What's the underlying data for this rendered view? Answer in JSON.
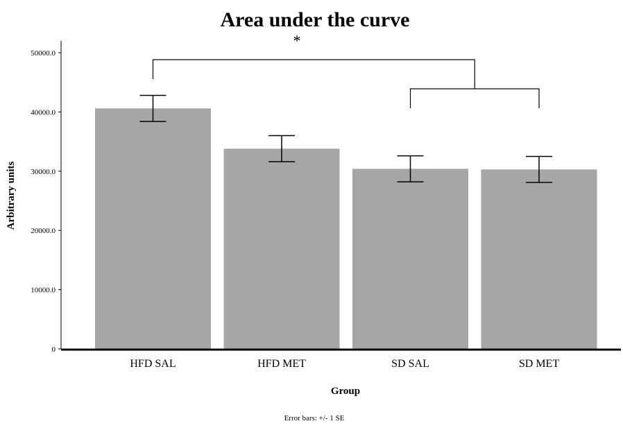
{
  "chart_data": {
    "type": "bar",
    "title": "Area under the curve",
    "xlabel": "Group",
    "ylabel": "Arbitrary units",
    "categories": [
      "HFD SAL",
      "HFD MET",
      "SD SAL",
      "SD MET"
    ],
    "values": [
      40600,
      33800,
      30400,
      30300
    ],
    "error_bars": [
      2200,
      2200,
      2200,
      2200
    ],
    "ylim": [
      0,
      52000
    ],
    "yticks": [
      0,
      10000,
      20000,
      30000,
      40000,
      50000
    ],
    "ytick_labels": [
      "0",
      "10000.0",
      "20000.0",
      "30000.0",
      "40000.0",
      "50000.0"
    ],
    "bar_color": "#a6a6a6",
    "grid": false,
    "footnote": "Error bars: +/- 1 SE",
    "significance": {
      "symbol": "*",
      "comparison": "HFD SAL vs SD SAL + SD MET"
    }
  }
}
